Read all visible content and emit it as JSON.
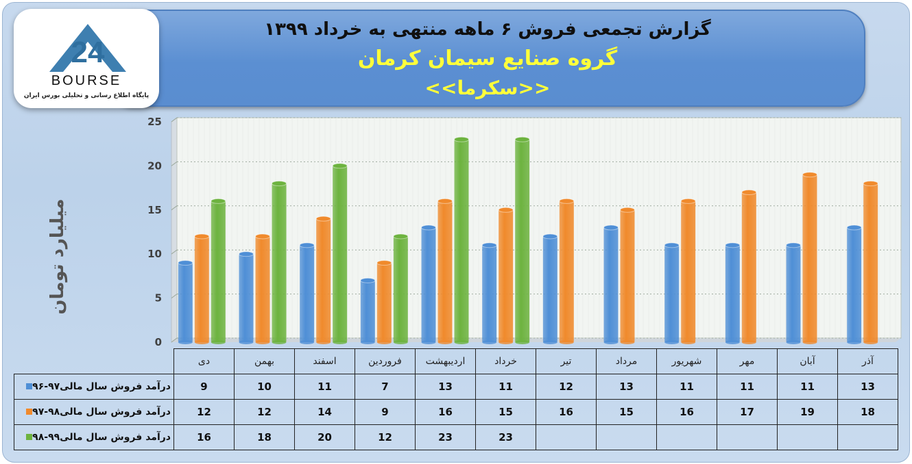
{
  "header": {
    "title_line1": "گزارش تجمعی فروش ۶ ماهه منتهی به خرداد ۱۳۹۹",
    "title_line2": "گروه صنایع سیمان کرمان",
    "title_line3": "<<سکرما>>"
  },
  "logo": {
    "mark_text": "24",
    "brand_text": "BOURSE",
    "tagline": "پایگاه اطلاع رسانی و تحلیلی بورس ایران"
  },
  "chart_data": {
    "type": "bar",
    "ylabel": "میلیارد تومان",
    "ylim": [
      0,
      25
    ],
    "yticks": [
      0,
      5,
      10,
      15,
      20,
      25
    ],
    "grid": true,
    "categories": [
      "دی",
      "بهمن",
      "اسفند",
      "فروردین",
      "اردیبهشت",
      "خرداد",
      "تیر",
      "مرداد",
      "شهریور",
      "مهر",
      "آبان",
      "آذر"
    ],
    "series": [
      {
        "name": "درآمد فروش سال مالی۹۷-۹۶",
        "color": "#4f8fd6",
        "values": [
          9,
          10,
          11,
          7,
          13,
          11,
          12,
          13,
          11,
          11,
          11,
          13
        ]
      },
      {
        "name": "درآمد فروش سال مالی۹۸-۹۷",
        "color": "#f08a2c",
        "values": [
          12,
          12,
          14,
          9,
          16,
          15,
          16,
          15,
          16,
          17,
          19,
          18
        ]
      },
      {
        "name": "درآمد فروش سال مالی۹۹-۹۸",
        "color": "#6db33f",
        "values": [
          16,
          18,
          20,
          12,
          23,
          23,
          null,
          null,
          null,
          null,
          null,
          null
        ]
      }
    ]
  }
}
